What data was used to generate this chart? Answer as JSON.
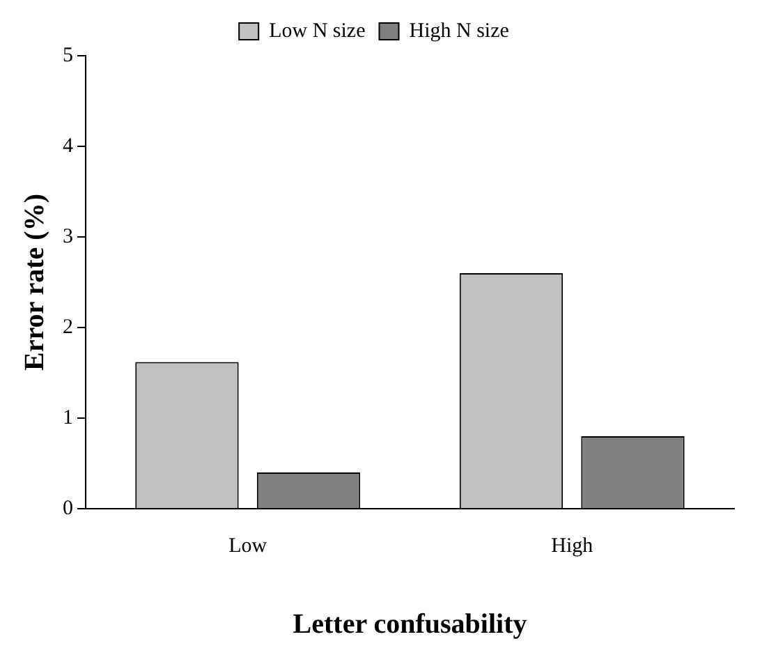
{
  "chart_data": {
    "type": "bar",
    "xlabel": "Letter confusability",
    "ylabel": "Error rate (%)",
    "categories": [
      "Low",
      "High"
    ],
    "series": [
      {
        "name": "Low N size",
        "color": "#c0c0c0",
        "values": [
          1.62,
          2.6
        ]
      },
      {
        "name": "High N size",
        "color": "#808080",
        "values": [
          0.4,
          0.8
        ]
      }
    ],
    "ylim": [
      0,
      5
    ],
    "yticks": [
      0,
      1,
      2,
      3,
      4,
      5
    ],
    "grid": false,
    "legend": "top"
  }
}
